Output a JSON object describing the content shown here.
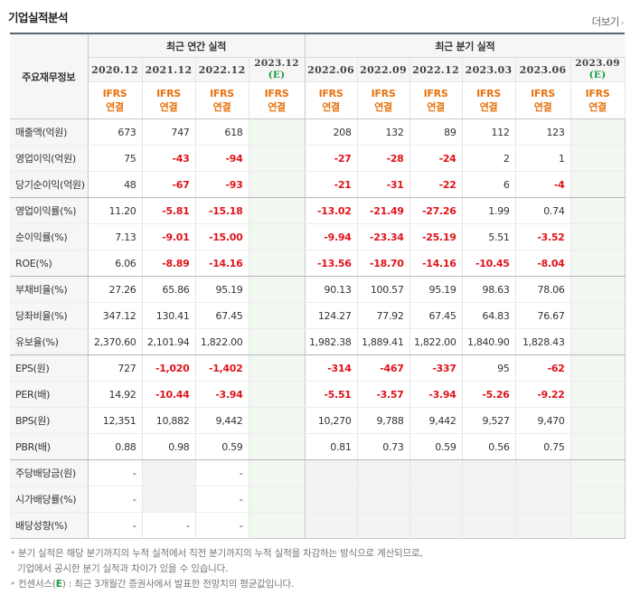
{
  "title": "기업실적분석",
  "more_label": "더보기",
  "header": {
    "corner_label": "주요재무정보",
    "annual_label": "최근 연간 실적",
    "quarter_label": "최근 분기 실적",
    "columns": [
      {
        "date": "2020.12",
        "est": "",
        "ifrs": "IFRS",
        "basis": "연결"
      },
      {
        "date": "2021.12",
        "est": "",
        "ifrs": "IFRS",
        "basis": "연결"
      },
      {
        "date": "2022.12",
        "est": "",
        "ifrs": "IFRS",
        "basis": "연결"
      },
      {
        "date": "2023.12",
        "est": "(E)",
        "ifrs": "IFRS",
        "basis": "연결"
      },
      {
        "date": "2022.06",
        "est": "",
        "ifrs": "IFRS",
        "basis": "연결"
      },
      {
        "date": "2022.09",
        "est": "",
        "ifrs": "IFRS",
        "basis": "연결"
      },
      {
        "date": "2022.12",
        "est": "",
        "ifrs": "IFRS",
        "basis": "연결"
      },
      {
        "date": "2023.03",
        "est": "",
        "ifrs": "IFRS",
        "basis": "연결"
      },
      {
        "date": "2023.06",
        "est": "",
        "ifrs": "IFRS",
        "basis": "연결"
      },
      {
        "date": "2023.09",
        "est": "(E)",
        "ifrs": "IFRS",
        "basis": "연결"
      }
    ]
  },
  "rows": [
    {
      "label": "매출액(억원)",
      "values": [
        "673",
        "747",
        "618",
        "",
        "208",
        "132",
        "89",
        "112",
        "123",
        ""
      ]
    },
    {
      "label": "영업이익(억원)",
      "values": [
        "75",
        "-43",
        "-94",
        "",
        "-27",
        "-28",
        "-24",
        "2",
        "1",
        ""
      ]
    },
    {
      "label": "당기순이익(억원)",
      "values": [
        "48",
        "-67",
        "-93",
        "",
        "-21",
        "-31",
        "-22",
        "6",
        "-4",
        ""
      ]
    },
    {
      "label": "영업이익률(%)",
      "values": [
        "11.20",
        "-5.81",
        "-15.18",
        "",
        "-13.02",
        "-21.49",
        "-27.26",
        "1.99",
        "0.74",
        ""
      ]
    },
    {
      "label": "순이익률(%)",
      "values": [
        "7.13",
        "-9.01",
        "-15.00",
        "",
        "-9.94",
        "-23.34",
        "-25.19",
        "5.51",
        "-3.52",
        ""
      ]
    },
    {
      "label": "ROE(%)",
      "values": [
        "6.06",
        "-8.89",
        "-14.16",
        "",
        "-13.56",
        "-18.70",
        "-14.16",
        "-10.45",
        "-8.04",
        ""
      ]
    },
    {
      "label": "부채비율(%)",
      "values": [
        "27.26",
        "65.86",
        "95.19",
        "",
        "90.13",
        "100.57",
        "95.19",
        "98.63",
        "78.06",
        ""
      ]
    },
    {
      "label": "당좌비율(%)",
      "values": [
        "347.12",
        "130.41",
        "67.45",
        "",
        "124.27",
        "77.92",
        "67.45",
        "64.83",
        "76.67",
        ""
      ]
    },
    {
      "label": "유보율(%)",
      "values": [
        "2,370.60",
        "2,101.94",
        "1,822.00",
        "",
        "1,982.38",
        "1,889.41",
        "1,822.00",
        "1,840.90",
        "1,828.43",
        ""
      ]
    },
    {
      "label": "EPS(원)",
      "values": [
        "727",
        "-1,020",
        "-1,402",
        "",
        "-314",
        "-467",
        "-337",
        "95",
        "-62",
        ""
      ]
    },
    {
      "label": "PER(배)",
      "values": [
        "14.92",
        "-10.44",
        "-3.94",
        "",
        "-5.51",
        "-3.57",
        "-3.94",
        "-5.26",
        "-9.22",
        ""
      ]
    },
    {
      "label": "BPS(원)",
      "values": [
        "12,351",
        "10,882",
        "9,442",
        "",
        "10,270",
        "9,788",
        "9,442",
        "9,527",
        "9,470",
        ""
      ]
    },
    {
      "label": "PBR(배)",
      "values": [
        "0.88",
        "0.98",
        "0.59",
        "",
        "0.81",
        "0.73",
        "0.59",
        "0.56",
        "0.75",
        ""
      ]
    },
    {
      "label": "주당배당금(원)",
      "values": [
        "-",
        "",
        "-",
        "",
        "",
        "",
        "",
        "",
        "",
        ""
      ]
    },
    {
      "label": "시가배당률(%)",
      "values": [
        "-",
        "",
        "-",
        "",
        "",
        "",
        "",
        "",
        "",
        ""
      ]
    },
    {
      "label": "배당성향(%)",
      "values": [
        "-",
        "-",
        "-",
        "",
        "",
        "",
        "",
        "",
        "",
        ""
      ]
    }
  ],
  "notes": {
    "line1": "분기 실적은 해당 분기까지의 누적 실적에서 직전 분기까지의 누적 실적을 차감하는 방식으로 계산되므로,",
    "line2": "기업에서 공시한 분기 실적과 차이가 있을 수 있습니다.",
    "line3_prefix": "컨센서스(",
    "line3_e": "E",
    "line3_suffix": ") : 최근 3개월간 증권사에서 발표한 전망치의 평균값입니다."
  }
}
